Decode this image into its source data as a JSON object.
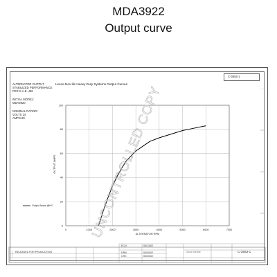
{
  "page": {
    "title": "MDA3922",
    "subtitle": "Output curve"
  },
  "sheet": {
    "drawing_no_top": "C-3553-1",
    "left_panel": {
      "line1": "ALTERNATOR OUTPUT",
      "line2": "STABILIZED PERFORMANCE",
      "line3": "PER S.A.E. J56",
      "line4": "INITIAL MODEL:",
      "line5": "MDA3920",
      "line6": "NOMINAL RATING:",
      "line7": "VOLTS 24",
      "line8": "AMPS 80"
    },
    "watermark": "UNCONTROLLED COPY",
    "title_block": {
      "released": "RELEASED FOR PRODUCTION",
      "ecn_label": "ECN",
      "drawn_label": "DRN",
      "checked_label": "CHK",
      "drawn_date": "05/13/02",
      "checked_date": "06/20/02",
      "approved_date": "06/20/02",
      "company": "Leece-Neville",
      "drawing_no": "C-3553-1"
    }
  },
  "chart_data": {
    "type": "line",
    "title": "Leece-Nev    ille Heavy Duty Systems Output Curves",
    "xlabel": "ALTERNATOR RPM",
    "ylabel": "OUTPUT AMPS",
    "xlim": [
      0,
      7000
    ],
    "ylim": [
      0,
      100
    ],
    "x_ticks": [
      "0",
      "1000",
      "2000",
      "3000",
      "4000",
      "5000",
      "6000",
      "7000"
    ],
    "y_ticks": [
      "0",
      "20",
      "40",
      "60",
      "80",
      "100"
    ],
    "grid": true,
    "legend": {
      "position": "left",
      "entries": [
        "Output Amps @HC"
      ]
    },
    "series": [
      {
        "name": "Output Amps @HC",
        "color": "#000000",
        "x": [
          1400,
          1600,
          1800,
          2000,
          2200,
          2400,
          2600,
          2800,
          3000,
          3300,
          3600,
          4000,
          4500,
          5000,
          5500,
          6000
        ],
        "y": [
          0,
          12,
          23,
          33,
          41,
          48,
          54,
          58,
          62,
          66,
          70,
          73,
          76,
          79,
          81,
          83
        ]
      }
    ]
  }
}
